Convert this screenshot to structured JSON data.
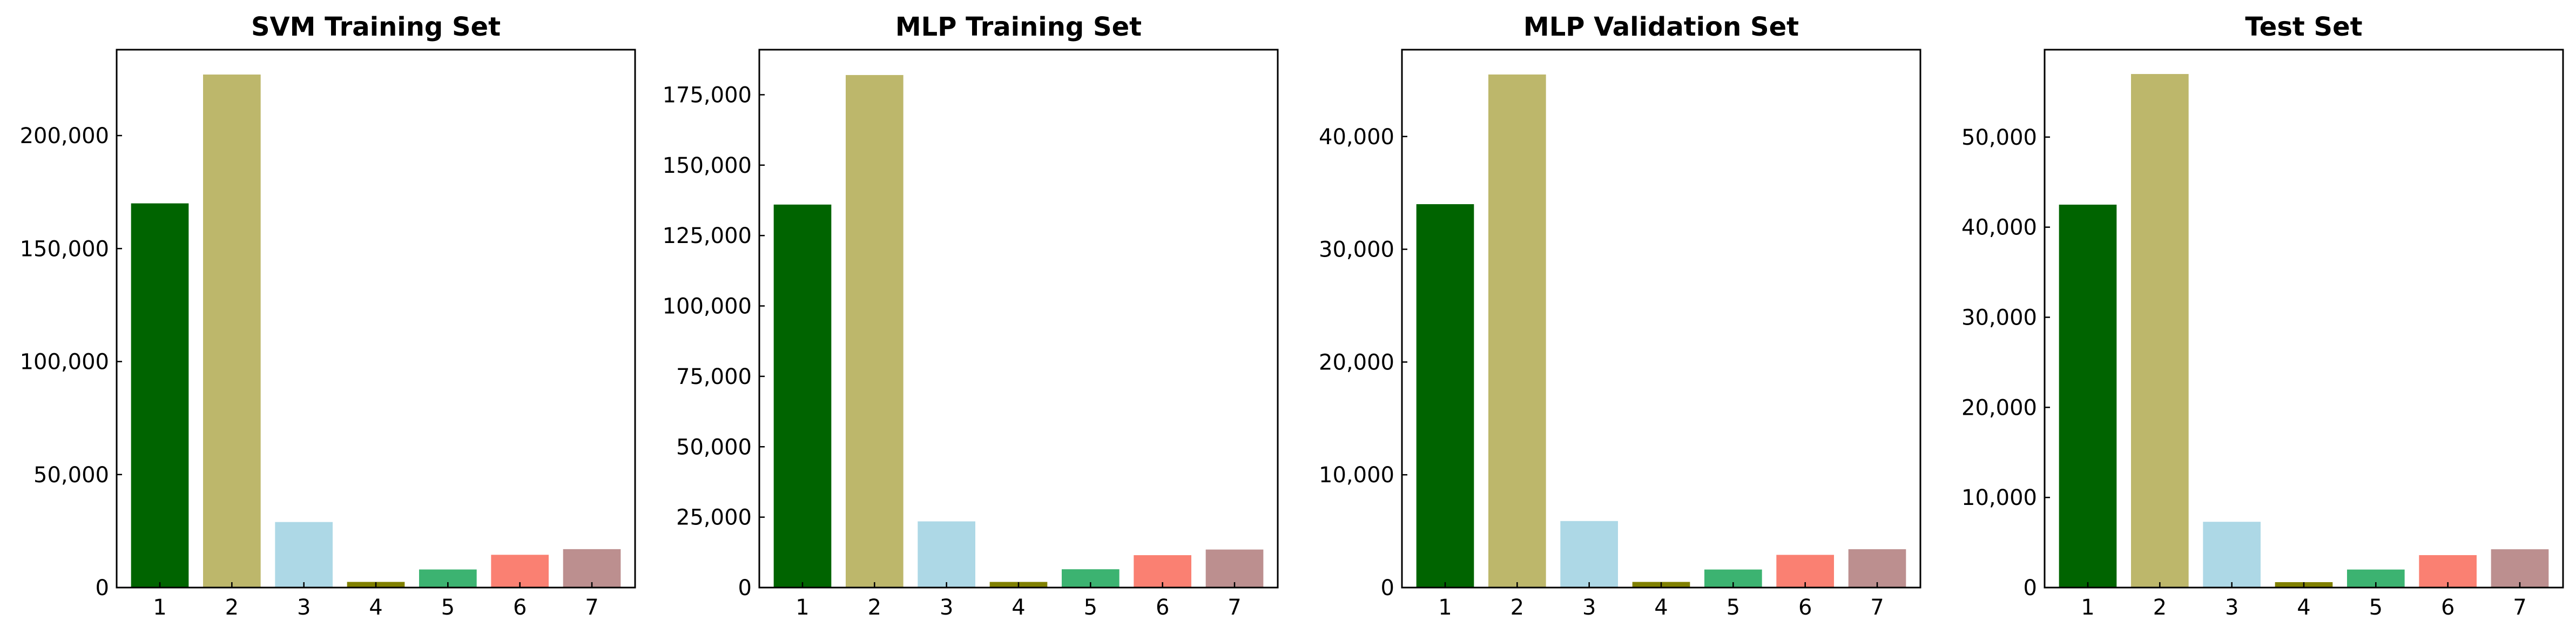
{
  "figure": {
    "background": "#ffffff"
  },
  "chart_data": [
    {
      "type": "bar",
      "title": "SVM Training Set",
      "xlabel": "",
      "ylabel": "",
      "categories": [
        "1",
        "2",
        "3",
        "4",
        "5",
        "6",
        "7"
      ],
      "values": [
        170000,
        227000,
        29000,
        2500,
        8000,
        14500,
        17000
      ],
      "colors": [
        "#006400",
        "#bdb76b",
        "#add8e6",
        "#808000",
        "#3cb371",
        "#fa8072",
        "#bc8f8f"
      ],
      "yticks": [
        0,
        50000,
        100000,
        150000,
        200000
      ],
      "ytick_labels": [
        "0",
        "50,000",
        "100,000",
        "150,000",
        "200,000"
      ],
      "ylim": [
        0,
        238000
      ],
      "grid": false,
      "legend": "none"
    },
    {
      "type": "bar",
      "title": "MLP Training Set",
      "xlabel": "",
      "ylabel": "",
      "categories": [
        "1",
        "2",
        "3",
        "4",
        "5",
        "6",
        "7"
      ],
      "values": [
        136000,
        182000,
        23500,
        2000,
        6500,
        11500,
        13500
      ],
      "colors": [
        "#006400",
        "#bdb76b",
        "#add8e6",
        "#808000",
        "#3cb371",
        "#fa8072",
        "#bc8f8f"
      ],
      "yticks": [
        0,
        25000,
        50000,
        75000,
        100000,
        125000,
        150000,
        175000
      ],
      "ytick_labels": [
        "0",
        "25,000",
        "50,000",
        "75,000",
        "100,000",
        "125,000",
        "150,000",
        "175,000"
      ],
      "ylim": [
        0,
        191000
      ],
      "grid": false,
      "legend": "none"
    },
    {
      "type": "bar",
      "title": "MLP Validation Set",
      "xlabel": "",
      "ylabel": "",
      "categories": [
        "1",
        "2",
        "3",
        "4",
        "5",
        "6",
        "7"
      ],
      "values": [
        34000,
        45500,
        5900,
        500,
        1600,
        2900,
        3400
      ],
      "colors": [
        "#006400",
        "#bdb76b",
        "#add8e6",
        "#808000",
        "#3cb371",
        "#fa8072",
        "#bc8f8f"
      ],
      "yticks": [
        0,
        10000,
        20000,
        30000,
        40000
      ],
      "ytick_labels": [
        "0",
        "10,000",
        "20,000",
        "30,000",
        "40,000"
      ],
      "ylim": [
        0,
        47700
      ],
      "grid": false,
      "legend": "none"
    },
    {
      "type": "bar",
      "title": "Test Set",
      "xlabel": "",
      "ylabel": "",
      "categories": [
        "1",
        "2",
        "3",
        "4",
        "5",
        "6",
        "7"
      ],
      "values": [
        42500,
        57000,
        7300,
        600,
        2000,
        3600,
        4250
      ],
      "colors": [
        "#006400",
        "#bdb76b",
        "#add8e6",
        "#808000",
        "#3cb371",
        "#fa8072",
        "#bc8f8f"
      ],
      "yticks": [
        0,
        10000,
        20000,
        30000,
        40000,
        50000
      ],
      "ytick_labels": [
        "0",
        "10,000",
        "20,000",
        "30,000",
        "40,000",
        "50,000"
      ],
      "ylim": [
        0,
        59700
      ],
      "grid": false,
      "legend": "none"
    }
  ]
}
